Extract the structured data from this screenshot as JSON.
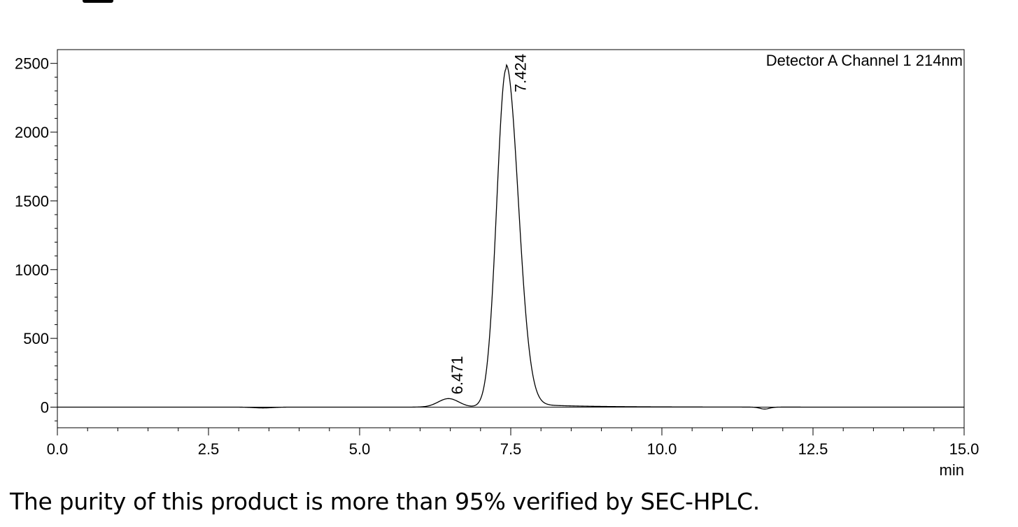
{
  "caption": "The purity of this product is more than 95% verified by SEC-HPLC.",
  "chart_data": {
    "type": "line",
    "detector_label": "Detector A Channel 1 214nm",
    "x_unit": "min",
    "xlim": [
      0.0,
      15.0
    ],
    "ylim": [
      -150,
      2600
    ],
    "x_ticks": [
      "0.0",
      "2.5",
      "5.0",
      "7.5",
      "10.0",
      "12.5",
      "15.0"
    ],
    "y_ticks": [
      "0",
      "500",
      "1000",
      "1500",
      "2000",
      "2500"
    ],
    "peaks": [
      {
        "label": "6.471",
        "rt": 6.471,
        "height": 62,
        "sigma": 0.17
      },
      {
        "label": "7.424",
        "rt": 7.424,
        "height": 2460,
        "sigma_left": 0.155,
        "sigma_right": 0.2
      }
    ],
    "dips": [
      {
        "rt": 3.4,
        "depth": -6,
        "sigma": 0.15
      },
      {
        "rt": 11.7,
        "depth": -14,
        "sigma": 0.08
      }
    ]
  }
}
